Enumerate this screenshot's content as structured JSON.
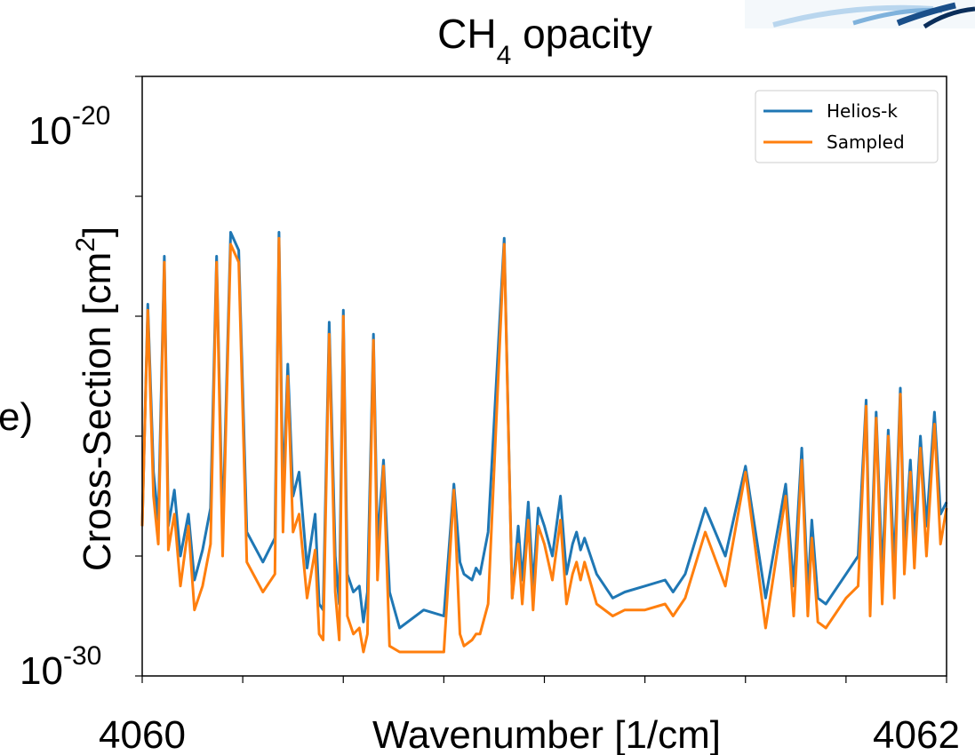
{
  "chart_data": {
    "type": "line",
    "title": "CH",
    "title_subscript": "4",
    "title_suffix": " opacity",
    "xlabel": "Wavenumber [1/cm]",
    "ylabel": "Cross-Section [cm",
    "ylabel_superscript": "2",
    "ylabel_suffix": "]",
    "panel_label": "e)",
    "x_tick_labels": [
      "4060",
      "4062"
    ],
    "y_tick_labels": [
      {
        "base": "10",
        "exp": "-20"
      },
      {
        "base": "10",
        "exp": "-30"
      }
    ],
    "xlim": [
      4060,
      4062
    ],
    "ylim_log10": [
      -30,
      -20
    ],
    "y_scale": "log",
    "grid": false,
    "legend_position": "top-right",
    "series": [
      {
        "name": "Helios-k",
        "color": "#1f77b4",
        "x": [
          4060.0,
          4060.014,
          4060.028,
          4060.04,
          4060.055,
          4060.065,
          4060.08,
          4060.095,
          4060.115,
          4060.13,
          4060.15,
          4060.17,
          4060.185,
          4060.2,
          4060.22,
          4060.24,
          4060.26,
          4060.3,
          4060.33,
          4060.34,
          4060.35,
          4060.362,
          4060.375,
          4060.39,
          4060.41,
          4060.43,
          4060.44,
          4060.45,
          4060.465,
          4060.48,
          4060.49,
          4060.5,
          4060.51,
          4060.525,
          4060.54,
          4060.55,
          4060.56,
          4060.575,
          4060.585,
          4060.6,
          4060.615,
          4060.64,
          4060.7,
          4060.75,
          4060.775,
          4060.79,
          4060.8,
          4060.82,
          4060.83,
          4060.84,
          4060.86,
          4060.9,
          4060.92,
          4060.935,
          4060.945,
          4060.96,
          4060.972,
          4060.985,
          4061.0,
          4061.02,
          4061.04,
          4061.055,
          4061.07,
          4061.08,
          4061.09,
          4061.1,
          4061.13,
          4061.17,
          4061.2,
          4061.25,
          4061.3,
          4061.32,
          4061.35,
          4061.4,
          4061.45,
          4061.5,
          4061.55,
          4061.6,
          4061.62,
          4061.64,
          4061.655,
          4061.665,
          4061.68,
          4061.7,
          4061.75,
          4061.78,
          4061.8,
          4061.81,
          4061.825,
          4061.84,
          4061.855,
          4061.87,
          4061.885,
          4061.895,
          4061.91,
          4061.92,
          4061.935,
          4061.95,
          4061.97,
          4061.985,
          4062.0
        ],
        "y_log10": [
          -27.5,
          -23.8,
          -26.6,
          -27.4,
          -23.0,
          -27.5,
          -26.9,
          -28.0,
          -27.3,
          -28.4,
          -27.9,
          -27.2,
          -23.0,
          -27.6,
          -22.6,
          -22.9,
          -27.6,
          -28.1,
          -27.7,
          -22.6,
          -27.0,
          -24.8,
          -27.0,
          -26.6,
          -28.2,
          -27.3,
          -28.8,
          -28.9,
          -24.1,
          -28.0,
          -28.8,
          -23.9,
          -28.3,
          -28.6,
          -28.5,
          -29.1,
          -28.6,
          -24.3,
          -27.8,
          -26.4,
          -28.6,
          -29.2,
          -28.9,
          -29.0,
          -26.8,
          -28.1,
          -28.3,
          -28.4,
          -28.2,
          -28.3,
          -27.6,
          -22.7,
          -28.7,
          -27.5,
          -28.4,
          -27.1,
          -28.5,
          -27.2,
          -27.5,
          -28.0,
          -27.0,
          -28.3,
          -27.8,
          -27.6,
          -27.9,
          -27.7,
          -28.3,
          -28.7,
          -28.6,
          -28.5,
          -28.4,
          -28.6,
          -28.3,
          -27.2,
          -28.0,
          -26.5,
          -28.7,
          -26.8,
          -28.5,
          -26.2,
          -28.6,
          -27.4,
          -28.7,
          -28.8,
          -28.3,
          -28.0,
          -25.4,
          -28.5,
          -25.6,
          -28.3,
          -25.9,
          -28.2,
          -25.2,
          -27.9,
          -26.4,
          -27.7,
          -26.0,
          -27.5,
          -25.6,
          -27.3,
          -27.1
        ]
      },
      {
        "name": "Sampled",
        "color": "#ff7f0e",
        "x": [
          4060.0,
          4060.014,
          4060.028,
          4060.04,
          4060.055,
          4060.065,
          4060.08,
          4060.095,
          4060.115,
          4060.13,
          4060.15,
          4060.17,
          4060.185,
          4060.2,
          4060.22,
          4060.24,
          4060.26,
          4060.3,
          4060.33,
          4060.34,
          4060.35,
          4060.362,
          4060.375,
          4060.39,
          4060.41,
          4060.43,
          4060.44,
          4060.45,
          4060.465,
          4060.48,
          4060.49,
          4060.5,
          4060.51,
          4060.525,
          4060.54,
          4060.55,
          4060.56,
          4060.575,
          4060.585,
          4060.6,
          4060.615,
          4060.64,
          4060.7,
          4060.75,
          4060.775,
          4060.79,
          4060.8,
          4060.82,
          4060.83,
          4060.84,
          4060.86,
          4060.9,
          4060.92,
          4060.935,
          4060.945,
          4060.96,
          4060.972,
          4060.985,
          4061.0,
          4061.02,
          4061.04,
          4061.055,
          4061.07,
          4061.08,
          4061.09,
          4061.1,
          4061.13,
          4061.17,
          4061.2,
          4061.25,
          4061.3,
          4061.32,
          4061.35,
          4061.4,
          4061.45,
          4061.5,
          4061.55,
          4061.6,
          4061.62,
          4061.64,
          4061.655,
          4061.665,
          4061.68,
          4061.7,
          4061.75,
          4061.78,
          4061.8,
          4061.81,
          4061.825,
          4061.84,
          4061.855,
          4061.87,
          4061.885,
          4061.895,
          4061.91,
          4061.92,
          4061.935,
          4061.95,
          4061.97,
          4061.985,
          4062.0
        ],
        "y_log10": [
          -27.5,
          -23.9,
          -27.0,
          -27.8,
          -23.1,
          -27.9,
          -27.3,
          -28.5,
          -27.5,
          -28.9,
          -28.5,
          -27.8,
          -23.1,
          -28.0,
          -22.8,
          -23.1,
          -28.1,
          -28.6,
          -28.3,
          -22.7,
          -27.6,
          -25.0,
          -27.6,
          -27.3,
          -28.7,
          -27.9,
          -29.3,
          -29.4,
          -24.3,
          -28.6,
          -29.4,
          -24.0,
          -29.0,
          -29.3,
          -29.2,
          -29.6,
          -29.3,
          -24.4,
          -28.4,
          -26.5,
          -29.5,
          -29.6,
          -29.6,
          -29.6,
          -26.9,
          -29.3,
          -29.5,
          -29.4,
          -29.3,
          -29.3,
          -28.8,
          -22.8,
          -28.7,
          -27.8,
          -28.8,
          -27.4,
          -28.9,
          -27.5,
          -27.8,
          -28.4,
          -27.4,
          -28.8,
          -28.3,
          -28.1,
          -28.4,
          -28.1,
          -28.8,
          -29.0,
          -28.9,
          -28.9,
          -28.8,
          -29.0,
          -28.7,
          -27.6,
          -28.5,
          -26.6,
          -29.2,
          -27.0,
          -29.0,
          -26.4,
          -29.0,
          -27.7,
          -29.1,
          -29.2,
          -28.7,
          -28.5,
          -25.5,
          -29.0,
          -25.7,
          -28.8,
          -26.0,
          -28.7,
          -25.3,
          -28.3,
          -26.6,
          -28.2,
          -26.2,
          -28.0,
          -25.8,
          -27.8,
          -27.2
        ]
      }
    ]
  }
}
